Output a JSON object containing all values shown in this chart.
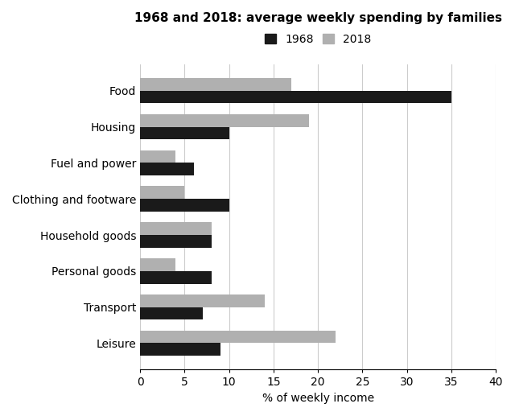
{
  "title": "1968 and 2018: average weekly spending by families",
  "categories": [
    "Food",
    "Housing",
    "Fuel and power",
    "Clothing and footware",
    "Household goods",
    "Personal goods",
    "Transport",
    "Leisure"
  ],
  "values_1968": [
    35,
    10,
    6,
    10,
    8,
    8,
    7,
    9
  ],
  "values_2018": [
    17,
    19,
    4,
    5,
    8,
    4,
    14,
    22
  ],
  "color_1968": "#1a1a1a",
  "color_2018": "#b0b0b0",
  "xlabel": "% of weekly income",
  "xlim": [
    0,
    40
  ],
  "xticks": [
    0,
    5,
    10,
    15,
    20,
    25,
    30,
    35,
    40
  ],
  "legend_labels": [
    "1968",
    "2018"
  ],
  "bar_height": 0.35,
  "background_color": "#ffffff",
  "grid_color": "#cccccc"
}
